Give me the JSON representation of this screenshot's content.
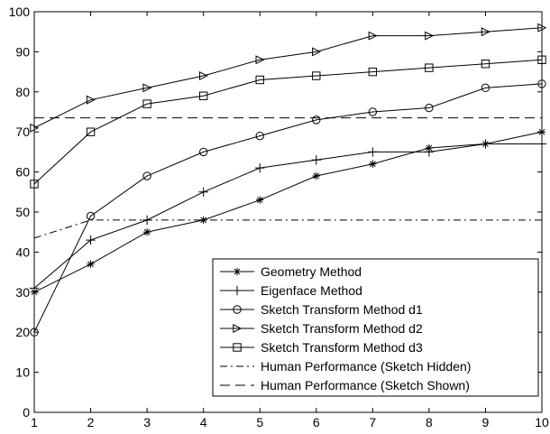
{
  "chart_data": {
    "type": "line",
    "title": "",
    "xlabel": "",
    "ylabel": "",
    "x": [
      1,
      2,
      3,
      4,
      5,
      6,
      7,
      8,
      9,
      10
    ],
    "xlim": [
      1,
      10
    ],
    "ylim": [
      0,
      100
    ],
    "xticks": [
      "1",
      "2",
      "3",
      "4",
      "5",
      "6",
      "7",
      "8",
      "9",
      "10"
    ],
    "yticks": [
      "0",
      "10",
      "20",
      "30",
      "40",
      "50",
      "60",
      "70",
      "80",
      "90",
      "100"
    ],
    "grid": false,
    "legend_position": "bottom-right",
    "series": [
      {
        "name": "Geometry Method",
        "marker": "asterisk",
        "dash": "solid",
        "values": [
          30,
          37,
          45,
          48,
          53,
          59,
          62,
          66,
          67,
          70
        ]
      },
      {
        "name": "Eigenface Method",
        "marker": "plus",
        "dash": "solid",
        "values": [
          31,
          43,
          48,
          55,
          61,
          63,
          65,
          65,
          67,
          67
        ]
      },
      {
        "name": "Sketch Transform Method d1",
        "marker": "circle",
        "dash": "solid",
        "values": [
          20,
          49,
          59,
          65,
          69,
          73,
          75,
          76,
          81,
          82
        ]
      },
      {
        "name": "Sketch Transform Method d2",
        "marker": "triangle-right",
        "dash": "solid",
        "values": [
          71,
          78,
          81,
          84,
          88,
          90,
          94,
          94,
          95,
          96
        ]
      },
      {
        "name": "Sketch Transform Method d3",
        "marker": "square",
        "dash": "solid",
        "values": [
          57,
          70,
          77,
          79,
          83,
          84,
          85,
          86,
          87,
          88
        ]
      },
      {
        "name": "Human Performance (Sketch Hidden)",
        "marker": "none",
        "dash": "dashdot",
        "values": [
          43.5,
          48,
          48,
          48,
          48,
          48,
          48,
          48,
          48,
          48
        ]
      },
      {
        "name": "Human Performance (Sketch Shown)",
        "marker": "none",
        "dash": "dashed",
        "values": [
          73.5,
          73.5,
          73.5,
          73.5,
          73.5,
          73.5,
          73.5,
          73.5,
          73.5,
          73.5
        ]
      }
    ]
  },
  "colors": {
    "line": "#000000",
    "background": "#ffffff"
  }
}
